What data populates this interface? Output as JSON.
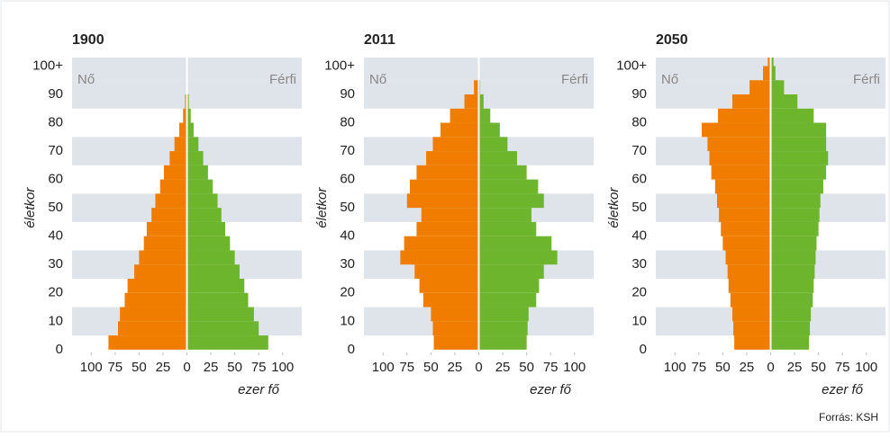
{
  "chart_data": [
    {
      "type": "pyramid",
      "title": "1900",
      "ylabel": "életkor",
      "xlabel": "ezer fő",
      "categories": [
        0,
        5,
        10,
        15,
        20,
        25,
        30,
        35,
        40,
        45,
        50,
        55,
        60,
        65,
        70,
        75,
        80,
        85,
        90,
        95,
        100
      ],
      "series": [
        {
          "name": "Nő",
          "color": "#f07d00",
          "side": "left",
          "values": [
            82,
            72,
            70,
            65,
            62,
            55,
            50,
            45,
            42,
            37,
            33,
            28,
            24,
            18,
            13,
            8,
            4,
            2,
            0.5,
            0,
            0
          ]
        },
        {
          "name": "Férfi",
          "color": "#6cb52d",
          "side": "right",
          "values": [
            85,
            75,
            70,
            64,
            60,
            55,
            50,
            45,
            40,
            36,
            32,
            27,
            22,
            17,
            12,
            7,
            4,
            2,
            0.5,
            0,
            0
          ]
        }
      ],
      "xlim": [
        -120,
        120
      ],
      "xticks": [
        {
          "value": -100,
          "label": "100"
        },
        {
          "value": -75,
          "label": "75"
        },
        {
          "value": -50,
          "label": "50"
        },
        {
          "value": -25,
          "label": "25"
        },
        0,
        25,
        50,
        75,
        100
      ],
      "ylim": [
        -1,
        103
      ],
      "yticks": [
        0,
        10,
        20,
        30,
        40,
        50,
        60,
        70,
        80,
        90,
        {
          "value": 100,
          "label": "100+"
        }
      ]
    },
    {
      "type": "pyramid",
      "title": "2011",
      "ylabel": "életkor",
      "xlabel": "ezer fő",
      "categories": [
        0,
        5,
        10,
        15,
        20,
        25,
        30,
        35,
        40,
        45,
        50,
        55,
        60,
        65,
        70,
        75,
        80,
        85,
        90,
        95,
        100
      ],
      "series": [
        {
          "name": "Nő",
          "color": "#f07d00",
          "side": "left",
          "values": [
            47,
            48,
            50,
            58,
            62,
            67,
            82,
            78,
            65,
            60,
            75,
            72,
            65,
            55,
            48,
            40,
            30,
            15,
            5,
            1,
            0
          ]
        },
        {
          "name": "Férfi",
          "color": "#6cb52d",
          "side": "right",
          "values": [
            50,
            51,
            52,
            60,
            63,
            68,
            82,
            76,
            60,
            55,
            68,
            62,
            50,
            40,
            30,
            22,
            12,
            5,
            1.5,
            0.3,
            0
          ]
        }
      ],
      "xlim": [
        -120,
        120
      ],
      "xticks": [
        {
          "value": -100,
          "label": "100"
        },
        {
          "value": -75,
          "label": "75"
        },
        {
          "value": -50,
          "label": "50"
        },
        {
          "value": -25,
          "label": "25"
        },
        0,
        25,
        50,
        75,
        100
      ],
      "ylim": [
        -1,
        103
      ],
      "yticks": [
        0,
        10,
        20,
        30,
        40,
        50,
        60,
        70,
        80,
        90,
        {
          "value": 100,
          "label": "100+"
        }
      ]
    },
    {
      "type": "pyramid",
      "title": "2050",
      "ylabel": "életkor",
      "xlabel": "ezer fő",
      "categories": [
        0,
        5,
        10,
        15,
        20,
        25,
        30,
        35,
        40,
        45,
        50,
        55,
        60,
        65,
        70,
        75,
        80,
        85,
        90,
        95,
        100
      ],
      "series": [
        {
          "name": "Nő",
          "color": "#f07d00",
          "side": "left",
          "values": [
            38,
            39,
            40,
            42,
            44,
            45,
            47,
            50,
            52,
            54,
            56,
            58,
            62,
            64,
            66,
            72,
            55,
            40,
            22,
            8,
            3
          ]
        },
        {
          "name": "Férfi",
          "color": "#6cb52d",
          "side": "right",
          "values": [
            40,
            41,
            42,
            44,
            45,
            46,
            47,
            48,
            50,
            51,
            52,
            55,
            58,
            60,
            58,
            58,
            45,
            28,
            14,
            5,
            3
          ]
        }
      ],
      "xlim": [
        -120,
        120
      ],
      "xticks": [
        {
          "value": -100,
          "label": "100"
        },
        {
          "value": -75,
          "label": "75"
        },
        {
          "value": -50,
          "label": "50"
        },
        {
          "value": -25,
          "label": "25"
        },
        0,
        25,
        50,
        75,
        100
      ],
      "ylim": [
        -1,
        103
      ],
      "yticks": [
        0,
        10,
        20,
        30,
        40,
        50,
        60,
        70,
        80,
        90,
        {
          "value": 100,
          "label": "100+"
        }
      ]
    }
  ],
  "source": "Forrás: KSH"
}
